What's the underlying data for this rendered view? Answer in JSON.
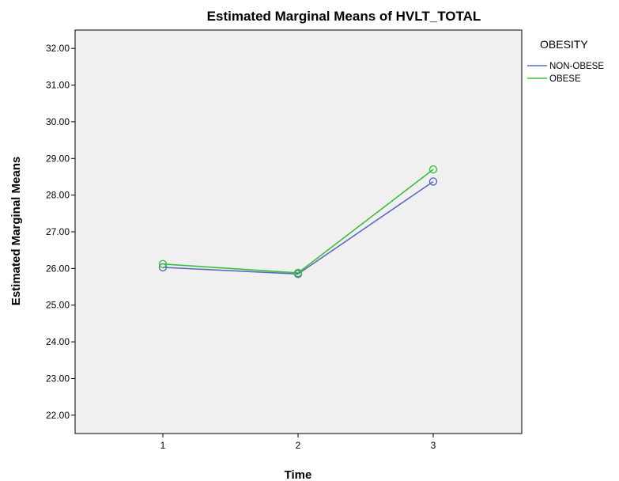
{
  "chart_data": {
    "type": "line",
    "title": "Estimated Marginal Means of HVLT_TOTAL",
    "xlabel": "Time",
    "ylabel": "Estimated Marginal Means",
    "categories": [
      "1",
      "2",
      "3"
    ],
    "ylim": [
      21.5,
      32.5
    ],
    "yticks": [
      22,
      23,
      24,
      25,
      26,
      27,
      28,
      29,
      30,
      31,
      32
    ],
    "ytick_labels": [
      "22.00",
      "23.00",
      "24.00",
      "25.00",
      "26.00",
      "27.00",
      "28.00",
      "29.00",
      "30.00",
      "31.00",
      "32.00"
    ],
    "grid": false,
    "legend": {
      "title": "OBESITY",
      "placement": "right"
    },
    "plot_background": "#f0f0f0",
    "series": [
      {
        "name": "NON-OBESE",
        "color": "#5b6cbf",
        "values": [
          26.03,
          25.85,
          28.37
        ]
      },
      {
        "name": "OBESE",
        "color": "#3cbf3c",
        "values": [
          26.12,
          25.88,
          28.7
        ]
      }
    ]
  }
}
